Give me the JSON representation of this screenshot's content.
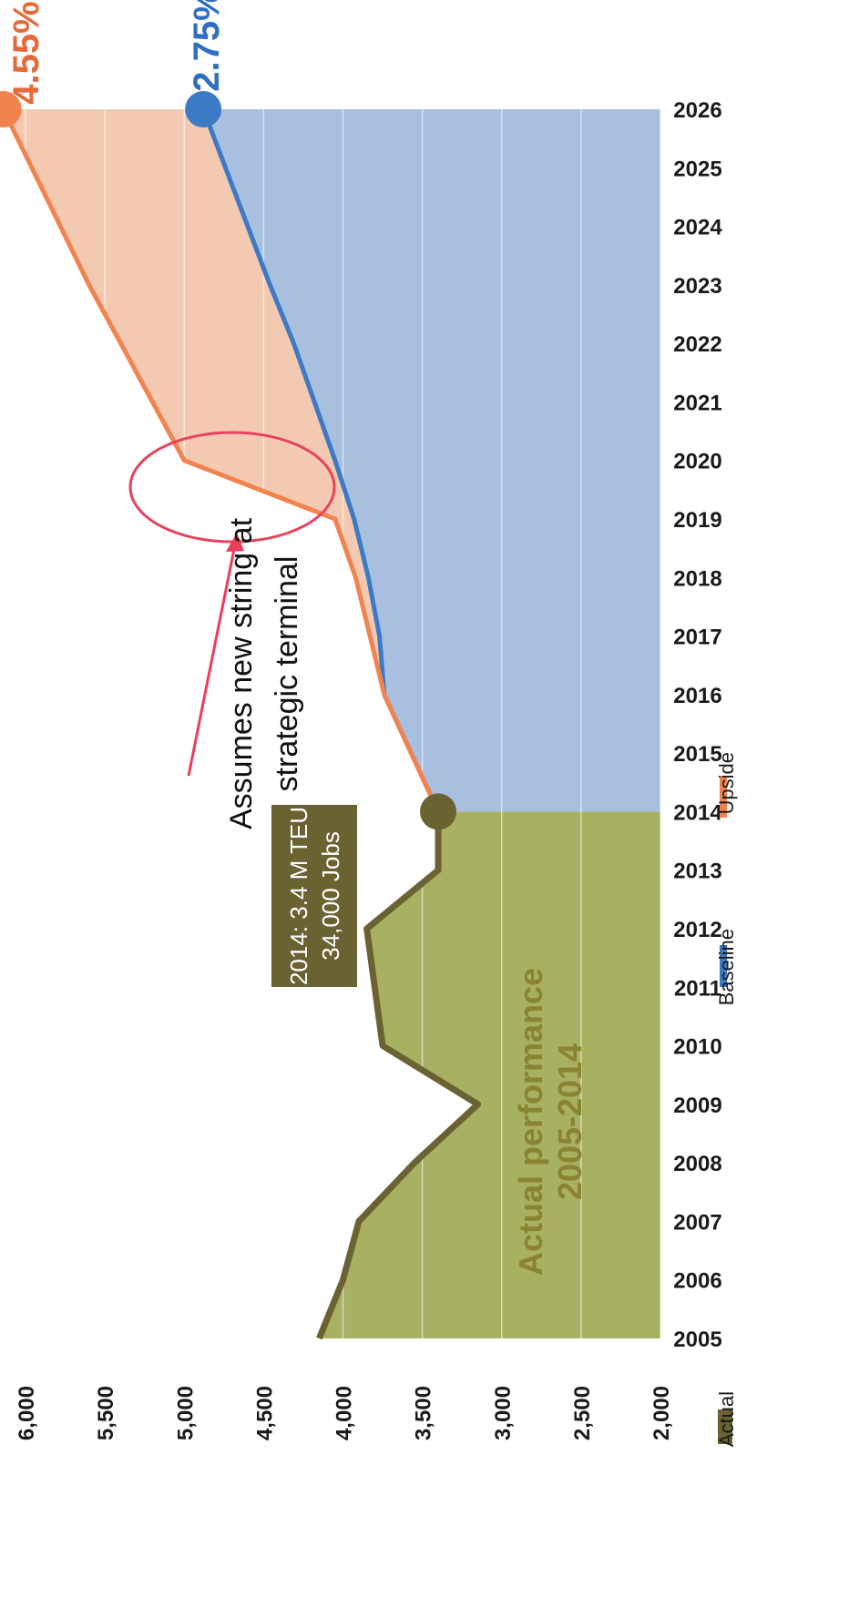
{
  "chart_data": {
    "type": "area",
    "x": [
      2005,
      2006,
      2007,
      2008,
      2009,
      2010,
      2011,
      2012,
      2013,
      2014,
      2015,
      2016,
      2017,
      2018,
      2019,
      2020,
      2021,
      2022,
      2023,
      2024,
      2025,
      2026
    ],
    "x_ticks": [
      "2005",
      "2006",
      "2007",
      "2008",
      "2009",
      "2010",
      "2011",
      "2012",
      "2013",
      "2014",
      "2015",
      "2016",
      "2017",
      "2018",
      "2019",
      "2020",
      "2021",
      "2022",
      "2023",
      "2024",
      "2025",
      "2026"
    ],
    "y_ticks": [
      "2,000",
      "2,500",
      "3,000",
      "3,500",
      "4,000",
      "4,500",
      "5,000",
      "5,500",
      "6,000"
    ],
    "ylim": [
      2000,
      6000
    ],
    "series": [
      {
        "name": "Actual",
        "color": "#6b6232",
        "area_color": "#a8b062",
        "x": [
          2005,
          2006,
          2007,
          2008,
          2009,
          2010,
          2011,
          2012,
          2013,
          2014
        ],
        "values": [
          4150,
          4000,
          3900,
          3550,
          3150,
          3750,
          3800,
          3850,
          3400,
          3400
        ]
      },
      {
        "name": "Baseline",
        "color": "#3d7ac6",
        "area_color": "#a9bfe0",
        "x": [
          2014,
          2015,
          2016,
          2017,
          2018,
          2019,
          2020,
          2021,
          2022,
          2023,
          2024,
          2025,
          2026
        ],
        "values": [
          3400,
          3570,
          3740,
          3770,
          3840,
          3930,
          4050,
          4180,
          4310,
          4460,
          4600,
          4740,
          4880
        ]
      },
      {
        "name": "Upside",
        "color": "#f2834f",
        "area_color": "#f3c3a8",
        "x": [
          2014,
          2015,
          2016,
          2017,
          2018,
          2019,
          2020,
          2021,
          2022,
          2023,
          2024,
          2025,
          2026
        ],
        "values": [
          3400,
          3570,
          3740,
          3830,
          3920,
          4050,
          5000,
          5200,
          5400,
          5600,
          5780,
          5960,
          6140
        ]
      }
    ],
    "end_labels": [
      {
        "series": "Upside",
        "text": "4.55%",
        "color": "#e56a3a"
      },
      {
        "series": "Baseline",
        "text": "2.75%",
        "color": "#2f6fbf"
      }
    ],
    "annotations": {
      "assumption_line1": "Assumes new string at",
      "assumption_line2": "strategic terminal",
      "box_line1": "2014: 3.4 M TEU",
      "box_line2": "34,000 Jobs",
      "perf_line1": "Actual performance",
      "perf_line2": "2005-2014"
    },
    "legend": [
      "Actual",
      "Baseline",
      "Upside"
    ],
    "legend_placement": "bottom",
    "orientation": "rotated 90° clockwise",
    "grid": true
  }
}
